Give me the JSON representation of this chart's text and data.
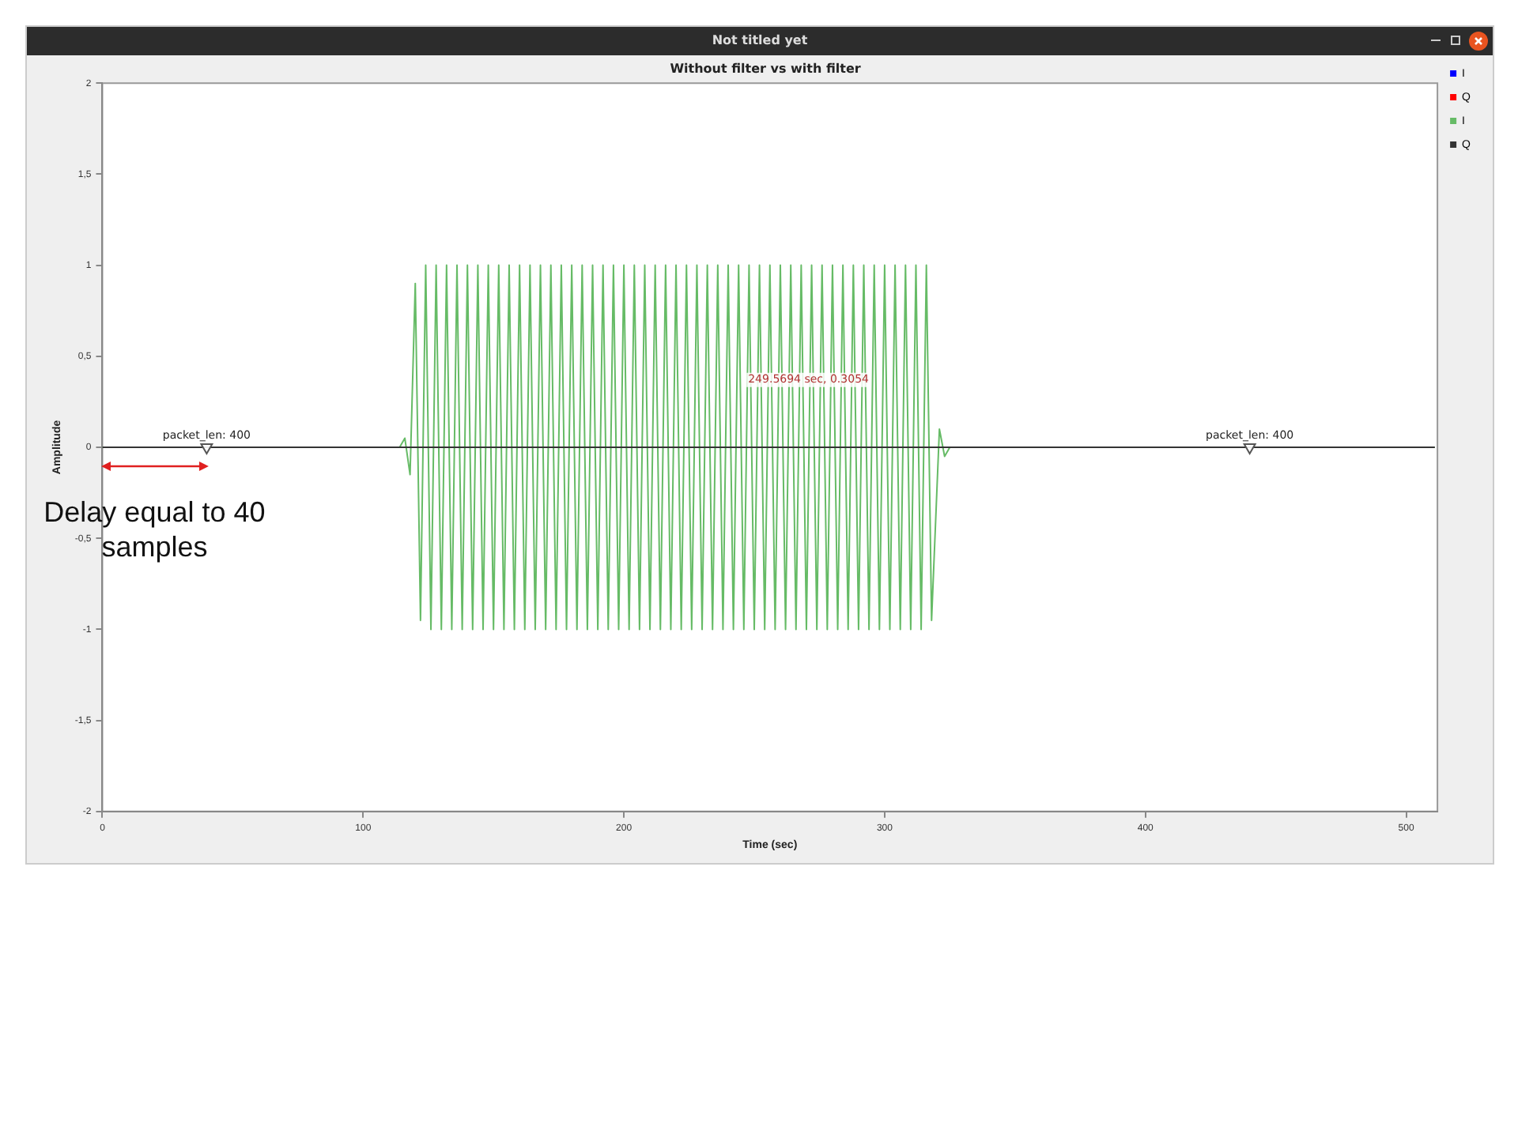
{
  "chart_data": {
    "type": "line",
    "title": "Without filter vs with filter",
    "xlabel": "Time (sec)",
    "ylabel": "Amplitude",
    "xlim": [
      0,
      512
    ],
    "xticks": [
      0,
      100,
      200,
      300,
      400,
      500
    ],
    "ylim": [
      -2,
      2
    ],
    "yticks": [
      {
        "value": -2,
        "label": "-2"
      },
      {
        "value": -1.5,
        "label": "-1,5"
      },
      {
        "value": -1,
        "label": "-1"
      },
      {
        "value": -0.5,
        "label": "-0,5"
      },
      {
        "value": 0,
        "label": "0"
      },
      {
        "value": 0.5,
        "label": "0,5"
      },
      {
        "value": 1,
        "label": "1"
      },
      {
        "value": 1.5,
        "label": "1,5"
      },
      {
        "value": 2,
        "label": "2"
      }
    ],
    "grid": false,
    "legend": "top right",
    "marker": "none",
    "line_style": "solid",
    "series": [
      {
        "name": "I",
        "color": "#0000ff"
      },
      {
        "name": "Q",
        "color": "#ff0000"
      },
      {
        "name": "I",
        "color": "#66bb66",
        "x": [
          0,
          114,
          116,
          118,
          120,
          122,
          124,
          126,
          128,
          130,
          132,
          134,
          136,
          138,
          140,
          142,
          144,
          146,
          148,
          150,
          152,
          154,
          156,
          158,
          160,
          162,
          164,
          166,
          168,
          170,
          172,
          174,
          176,
          178,
          180,
          182,
          184,
          186,
          188,
          190,
          192,
          194,
          196,
          198,
          200,
          202,
          204,
          206,
          208,
          210,
          212,
          214,
          216,
          218,
          220,
          222,
          224,
          226,
          228,
          230,
          232,
          234,
          236,
          238,
          240,
          242,
          244,
          246,
          248,
          250,
          252,
          254,
          256,
          258,
          260,
          262,
          264,
          266,
          268,
          270,
          272,
          274,
          276,
          278,
          280,
          282,
          284,
          286,
          288,
          290,
          292,
          294,
          296,
          298,
          300,
          302,
          304,
          306,
          308,
          310,
          312,
          314,
          316,
          318,
          321,
          323,
          325,
          511
        ],
        "values": [
          0,
          0,
          0.05,
          -0.15,
          0.9,
          -0.95,
          1,
          -1,
          1,
          -1,
          1,
          -1,
          1,
          -1,
          1,
          -1,
          1,
          -1,
          1,
          -1,
          1,
          -1,
          1,
          -1,
          1,
          -1,
          1,
          -1,
          1,
          -1,
          1,
          -1,
          1,
          -1,
          1,
          -1,
          1,
          -1,
          1,
          -1,
          1,
          -1,
          1,
          -1,
          1,
          -1,
          1,
          -1,
          1,
          -1,
          1,
          -1,
          1,
          -1,
          1,
          -1,
          1,
          -1,
          1,
          -1,
          1,
          -1,
          1,
          -1,
          1,
          -1,
          1,
          -1,
          1,
          -1,
          1,
          -1,
          1,
          -1,
          1,
          -1,
          1,
          -1,
          1,
          -1,
          1,
          -1,
          1,
          -1,
          1,
          -1,
          1,
          -1,
          1,
          -1,
          1,
          -1,
          1,
          -1,
          1,
          -1,
          1,
          -1,
          1,
          -1,
          1,
          -1,
          1,
          -0.95,
          0.1,
          -0.05,
          0,
          0
        ]
      },
      {
        "name": "Q",
        "color": "#333333",
        "x": [
          0,
          511
        ],
        "values": [
          0,
          0
        ]
      },
      {
        "type": "scatter",
        "marker": "triangle",
        "color": "#555555",
        "x": [
          40,
          440
        ],
        "values": [
          0,
          0
        ]
      }
    ],
    "annotations": [
      "Not titled yet",
      {
        "text": "packet_len: 400",
        "x": 40,
        "y": 0
      },
      {
        "text": "packet_len: 400",
        "x": 440,
        "y": 0
      },
      {
        "text": "249.5694 sec, 0.3054",
        "x": 249.5694,
        "y": 0.3054
      },
      {
        "text": "Delay equal to 40 samples",
        "x": 40,
        "y": -0.1
      }
    ]
  }
}
